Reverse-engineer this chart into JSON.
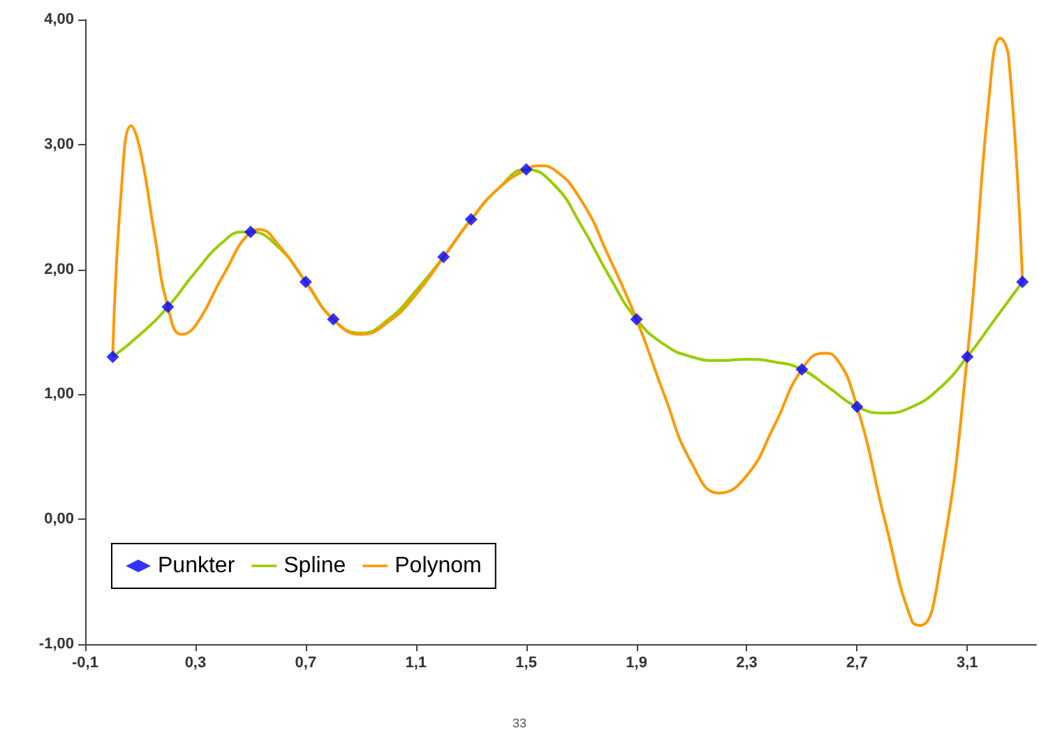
{
  "chart_data": {
    "type": "line",
    "xlim": [
      -0.1,
      3.35
    ],
    "xticks": [
      {
        "value": -0.1,
        "label": "-0,1"
      },
      {
        "value": 0.3,
        "label": "0,3"
      },
      {
        "value": 0.7,
        "label": "0,7"
      },
      {
        "value": 1.1,
        "label": "1,1"
      },
      {
        "value": 1.5,
        "label": "1,5"
      },
      {
        "value": 1.9,
        "label": "1,9"
      },
      {
        "value": 2.3,
        "label": "2,3"
      },
      {
        "value": 2.7,
        "label": "2,7"
      },
      {
        "value": 3.1,
        "label": "3,1"
      }
    ],
    "ylim": [
      -1,
      4
    ],
    "yticks": [
      {
        "value": -1,
        "label": "-1,00"
      },
      {
        "value": 0,
        "label": "0,00"
      },
      {
        "value": 1,
        "label": "1,00"
      },
      {
        "value": 2,
        "label": "2,00"
      },
      {
        "value": 3,
        "label": "3,00"
      },
      {
        "value": 4,
        "label": "4,00"
      }
    ],
    "grid": false,
    "legend": "bottom left",
    "annotations": [
      "33"
    ],
    "series": [
      {
        "name": "Punkter",
        "type": "scatter",
        "marker": "diamond",
        "color": "#0000ff",
        "x": [
          0,
          0.2,
          0.5,
          0.7,
          0.8,
          1.2,
          1.3,
          1.5,
          1.9,
          2.5,
          2.7,
          3.1,
          3.3
        ],
        "values": [
          1.3,
          1.7,
          2.3,
          1.9,
          1.6,
          2.1,
          2.4,
          2.8,
          1.6,
          1.2,
          0.9,
          1.3,
          1.9
        ]
      },
      {
        "name": "Spline",
        "marker": "none",
        "color": "#99cc00",
        "x": [
          0,
          0.1,
          0.2,
          0.3,
          0.4,
          0.47,
          0.5,
          0.6,
          0.7,
          0.8,
          0.9,
          1.0,
          1.1,
          1.2,
          1.3,
          1.4,
          1.5,
          1.6,
          1.7,
          1.8,
          1.9,
          2.0,
          2.1,
          2.2,
          2.3,
          2.4,
          2.5,
          2.6,
          2.7,
          2.8,
          2.9,
          3.0,
          3.1,
          3.2,
          3.3
        ],
        "values": [
          1.3,
          1.48,
          1.7,
          1.98,
          2.22,
          2.3,
          2.3,
          2.18,
          1.9,
          1.6,
          1.49,
          1.6,
          1.83,
          2.1,
          2.4,
          2.65,
          2.8,
          2.68,
          2.35,
          1.95,
          1.6,
          1.4,
          1.3,
          1.27,
          1.28,
          1.26,
          1.2,
          1.05,
          0.9,
          0.85,
          0.9,
          1.05,
          1.3,
          1.6,
          1.9
        ]
      },
      {
        "name": "Polynom",
        "marker": "none",
        "color": "#ff9900",
        "x": [
          0,
          0.03,
          0.067,
          0.1,
          0.15,
          0.2,
          0.25,
          0.3,
          0.4,
          0.5,
          0.53,
          0.6,
          0.7,
          0.8,
          0.9,
          1.0,
          1.1,
          1.2,
          1.3,
          1.4,
          1.5,
          1.55,
          1.6,
          1.7,
          1.8,
          1.9,
          2.0,
          2.1,
          2.2,
          2.3,
          2.4,
          2.5,
          2.58,
          2.62,
          2.7,
          2.8,
          2.9,
          2.93,
          3.0,
          3.1,
          3.18,
          3.22,
          3.25,
          3.3
        ],
        "values": [
          1.3,
          2.6,
          3.15,
          2.95,
          2.3,
          1.7,
          1.48,
          1.55,
          1.95,
          2.3,
          2.32,
          2.2,
          1.9,
          1.6,
          1.48,
          1.58,
          1.8,
          2.1,
          2.4,
          2.65,
          2.8,
          2.83,
          2.8,
          2.55,
          2.1,
          1.6,
          1.0,
          0.45,
          0.21,
          0.35,
          0.75,
          1.2,
          1.33,
          1.3,
          0.9,
          0.0,
          -0.82,
          -0.85,
          -0.4,
          1.3,
          3.4,
          3.85,
          3.7,
          1.9
        ]
      }
    ]
  }
}
